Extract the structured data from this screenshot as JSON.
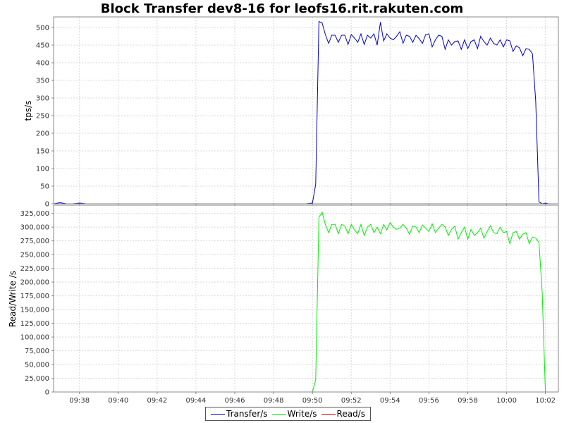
{
  "title": "Block Transfer dev8-16 for leofs16.rit.rakuten.com",
  "colors": {
    "transfer": "#0000cc",
    "write": "#00ee00",
    "read": "#cc0000",
    "grid": "#d8d8d8"
  },
  "legend": [
    {
      "label": "Transfer/s",
      "color": "#0000cc"
    },
    {
      "label": "Write/s",
      "color": "#00ee00"
    },
    {
      "label": "Read/s",
      "color": "#cc0000"
    }
  ],
  "chart_data": [
    {
      "type": "line",
      "ylabel": "tps/s",
      "ylim": [
        0,
        530
      ],
      "yticks": [
        0,
        50,
        100,
        150,
        200,
        250,
        300,
        350,
        400,
        450,
        500
      ],
      "xlim": [
        "09:36:40",
        "10:02:40"
      ],
      "grid": true,
      "series": [
        {
          "name": "Transfer/s",
          "color": "#0000cc",
          "x": [
            "09:36:40",
            "09:37:00",
            "09:37:20",
            "09:37:40",
            "09:38:00",
            "09:38:20",
            "09:49:40",
            "09:50:00",
            "09:50:10",
            "09:50:20",
            "09:50:30",
            "09:50:40",
            "09:50:50",
            "09:51:00",
            "09:51:10",
            "09:51:20",
            "09:51:30",
            "09:51:40",
            "09:51:50",
            "09:52:00",
            "09:52:10",
            "09:52:20",
            "09:52:30",
            "09:52:40",
            "09:52:50",
            "09:53:00",
            "09:53:10",
            "09:53:20",
            "09:53:30",
            "09:53:40",
            "09:53:50",
            "09:54:00",
            "09:54:10",
            "09:54:20",
            "09:54:30",
            "09:54:40",
            "09:54:50",
            "09:55:00",
            "09:55:10",
            "09:55:20",
            "09:55:30",
            "09:55:40",
            "09:55:50",
            "09:56:00",
            "09:56:10",
            "09:56:20",
            "09:56:30",
            "09:56:40",
            "09:56:50",
            "09:57:00",
            "09:57:10",
            "09:57:20",
            "09:57:30",
            "09:57:40",
            "09:57:50",
            "09:58:00",
            "09:58:10",
            "09:58:20",
            "09:58:30",
            "09:58:40",
            "09:58:50",
            "09:59:00",
            "09:59:10",
            "09:59:20",
            "09:59:30",
            "09:59:40",
            "09:59:50",
            "10:00:00",
            "10:00:10",
            "10:00:20",
            "10:00:30",
            "10:00:40",
            "10:00:50",
            "10:01:00",
            "10:01:10",
            "10:01:20",
            "10:01:30",
            "10:01:40",
            "10:01:50",
            "10:02:00",
            "10:02:10",
            "10:02:20",
            "10:02:40"
          ],
          "values": [
            0,
            3,
            0,
            0,
            2,
            0,
            0,
            2,
            55,
            517,
            513,
            480,
            455,
            478,
            478,
            458,
            478,
            478,
            452,
            480,
            470,
            458,
            482,
            452,
            478,
            470,
            482,
            450,
            515,
            462,
            482,
            470,
            465,
            475,
            488,
            455,
            478,
            475,
            458,
            478,
            468,
            455,
            480,
            482,
            445,
            465,
            478,
            475,
            438,
            465,
            450,
            460,
            462,
            438,
            465,
            440,
            460,
            465,
            440,
            475,
            460,
            450,
            470,
            455,
            450,
            465,
            445,
            465,
            462,
            432,
            448,
            442,
            420,
            440,
            438,
            425,
            290,
            5,
            0,
            2,
            0,
            0,
            0
          ]
        }
      ]
    },
    {
      "type": "line",
      "ylabel": "Read/Write /s",
      "ylim": [
        0,
        340000
      ],
      "yticks": [
        0,
        25000,
        50000,
        75000,
        100000,
        125000,
        150000,
        175000,
        200000,
        225000,
        250000,
        275000,
        300000,
        325000
      ],
      "ytick_labels": [
        "0",
        "25,000",
        "50,000",
        "75,000",
        "100,000",
        "125,000",
        "150,000",
        "175,000",
        "200,000",
        "225,000",
        "250,000",
        "275,000",
        "300,000",
        "325,000"
      ],
      "xticks": [
        "09:38",
        "09:40",
        "09:42",
        "09:44",
        "09:46",
        "09:48",
        "09:50",
        "09:52",
        "09:54",
        "09:56",
        "09:58",
        "10:00",
        "10:02"
      ],
      "xlim": [
        "09:36:40",
        "10:02:40"
      ],
      "grid": true,
      "series": [
        {
          "name": "Write/s",
          "color": "#00ee00",
          "x": [
            "09:36:40",
            "09:49:40",
            "09:50:00",
            "09:50:10",
            "09:50:20",
            "09:50:30",
            "09:50:40",
            "09:50:50",
            "09:51:00",
            "09:51:10",
            "09:51:20",
            "09:51:30",
            "09:51:40",
            "09:51:50",
            "09:52:00",
            "09:52:10",
            "09:52:20",
            "09:52:30",
            "09:52:40",
            "09:52:50",
            "09:53:00",
            "09:53:10",
            "09:53:20",
            "09:53:30",
            "09:53:40",
            "09:53:50",
            "09:54:00",
            "09:54:10",
            "09:54:20",
            "09:54:30",
            "09:54:40",
            "09:54:50",
            "09:55:00",
            "09:55:10",
            "09:55:20",
            "09:55:30",
            "09:55:40",
            "09:55:50",
            "09:56:00",
            "09:56:10",
            "09:56:20",
            "09:56:30",
            "09:56:40",
            "09:56:50",
            "09:57:00",
            "09:57:10",
            "09:57:20",
            "09:57:30",
            "09:57:40",
            "09:57:50",
            "09:58:00",
            "09:58:10",
            "09:58:20",
            "09:58:30",
            "09:58:40",
            "09:58:50",
            "09:59:00",
            "09:59:10",
            "09:59:20",
            "09:59:30",
            "09:59:40",
            "09:59:50",
            "10:00:00",
            "10:00:10",
            "10:00:20",
            "10:00:30",
            "10:00:40",
            "10:00:50",
            "10:01:00",
            "10:01:10",
            "10:01:20",
            "10:01:30",
            "10:01:40",
            "10:01:50",
            "10:02:00",
            "10:02:10",
            "10:02:40"
          ],
          "values": [
            0,
            0,
            0,
            22000,
            318000,
            327000,
            305000,
            290000,
            305000,
            305000,
            288000,
            305000,
            302000,
            288000,
            305000,
            295000,
            288000,
            305000,
            285000,
            300000,
            305000,
            290000,
            300000,
            288000,
            305000,
            295000,
            308000,
            300000,
            296000,
            298000,
            305000,
            298000,
            287000,
            302000,
            300000,
            290000,
            304000,
            298000,
            292000,
            306000,
            290000,
            298000,
            305000,
            300000,
            285000,
            296000,
            302000,
            278000,
            290000,
            300000,
            278000,
            296000,
            285000,
            290000,
            298000,
            280000,
            292000,
            302000,
            290000,
            288000,
            300000,
            290000,
            292000,
            270000,
            290000,
            292000,
            278000,
            287000,
            290000,
            270000,
            282000,
            280000,
            272000,
            180000,
            0,
            0,
            0
          ]
        },
        {
          "name": "Read/s",
          "color": "#cc0000",
          "x": [
            "09:36:40",
            "10:02:40"
          ],
          "values": [
            0,
            0
          ]
        }
      ]
    }
  ]
}
